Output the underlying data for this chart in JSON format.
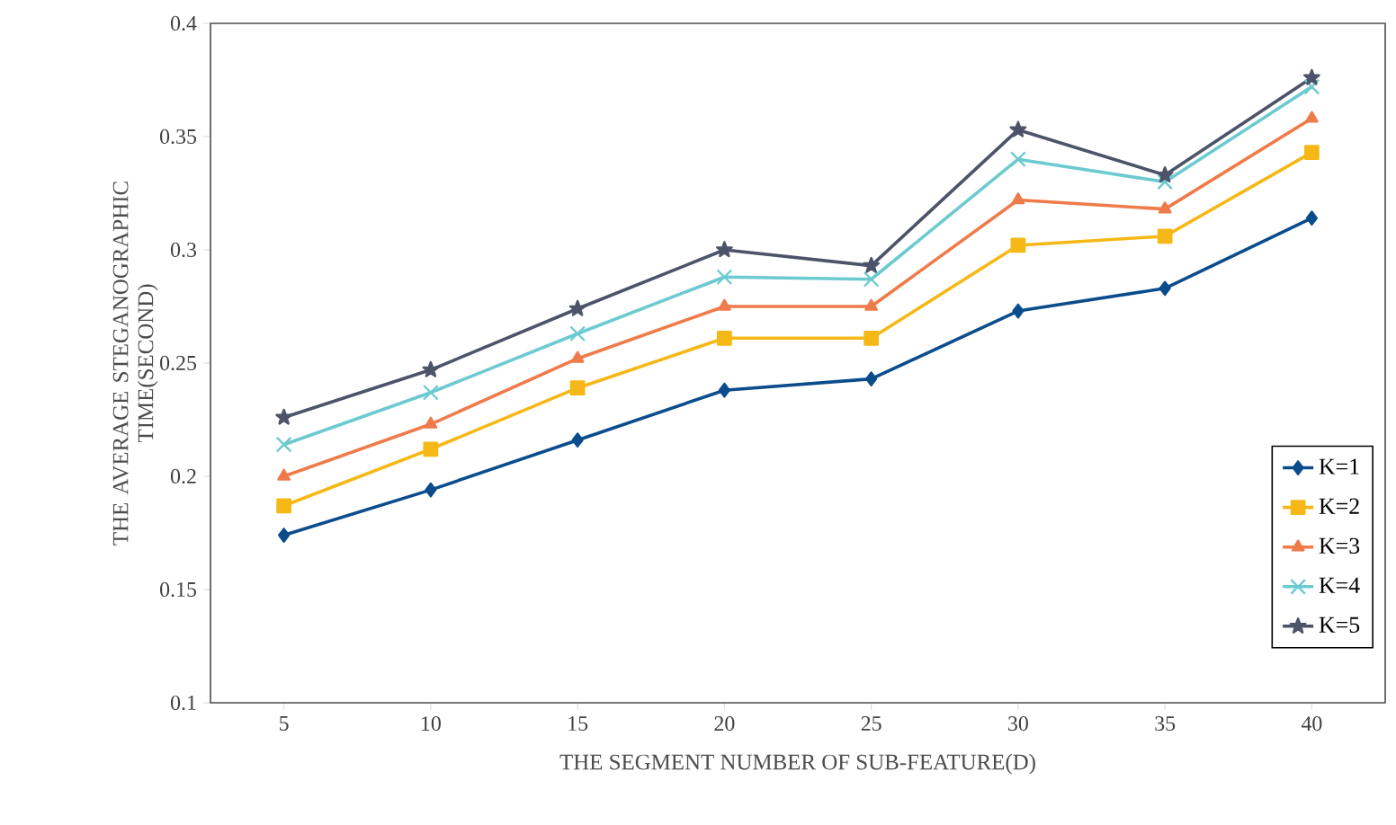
{
  "chart_data": {
    "type": "line",
    "xlabel": "THE SEGMENT NUMBER OF SUB-FEATURE(D)",
    "ylabel": "THE AVERAGE STEGANOGRAPHIC TIME(SECOND)",
    "categories": [
      "5",
      "10",
      "15",
      "20",
      "25",
      "30",
      "35",
      "40"
    ],
    "ylim": [
      0.1,
      0.4
    ],
    "yticks": [
      0.1,
      0.15,
      0.2,
      0.25,
      0.3,
      0.35,
      0.4
    ],
    "legend": "bottom right",
    "grid": false,
    "line_style": "solid",
    "series": [
      {
        "name": "K=1",
        "color": "#0b4d8c",
        "marker": "diamond",
        "values": [
          0.174,
          0.194,
          0.216,
          0.238,
          0.243,
          0.273,
          0.283,
          0.314
        ]
      },
      {
        "name": "K=2",
        "color": "#f5b816",
        "marker": "square",
        "values": [
          0.187,
          0.212,
          0.239,
          0.261,
          0.261,
          0.302,
          0.306,
          0.343
        ]
      },
      {
        "name": "K=3",
        "color": "#ef7b4a",
        "marker": "triangle",
        "values": [
          0.2,
          0.223,
          0.252,
          0.275,
          0.275,
          0.322,
          0.318,
          0.358
        ]
      },
      {
        "name": "K=4",
        "color": "#6ccad0",
        "marker": "cross",
        "values": [
          0.214,
          0.237,
          0.263,
          0.288,
          0.287,
          0.34,
          0.33,
          0.372
        ]
      },
      {
        "name": "K=5",
        "color": "#4d5369",
        "marker": "star",
        "values": [
          0.226,
          0.247,
          0.274,
          0.3,
          0.293,
          0.353,
          0.333,
          0.376
        ]
      }
    ]
  }
}
